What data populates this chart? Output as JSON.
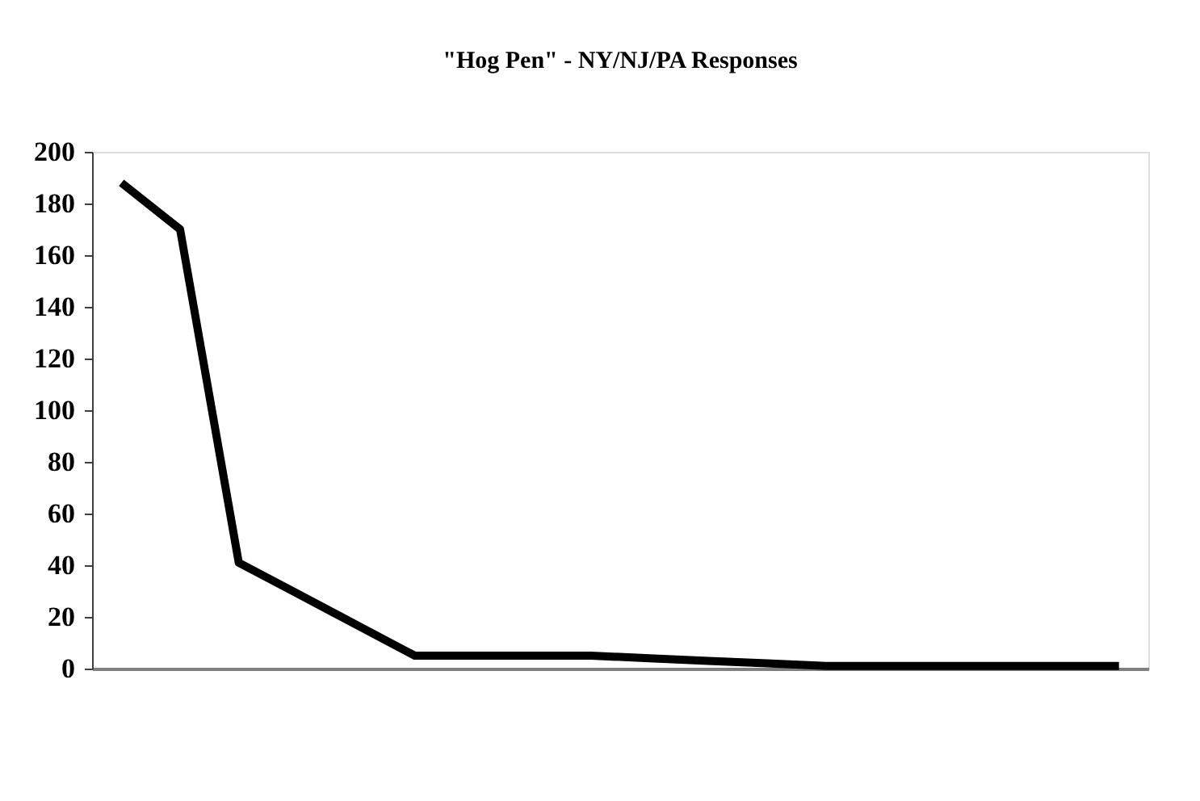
{
  "chart_data": {
    "type": "line",
    "title": "\"Hog Pen\" - NY/NJ/PA Responses",
    "categories": [
      null,
      null,
      null,
      null,
      null,
      null,
      null,
      null,
      null,
      null,
      null,
      null,
      null,
      null,
      null,
      null,
      null,
      null
    ],
    "series": [
      {
        "color": "#000000",
        "values": [
          188,
          170,
          41,
          29,
          17,
          5,
          5,
          5,
          5,
          4,
          3,
          2,
          1,
          1,
          1,
          1,
          1,
          1
        ]
      }
    ],
    "ylim": [
      0,
      200
    ],
    "yticks": [
      0,
      20,
      40,
      60,
      80,
      100,
      120,
      140,
      160,
      180,
      200
    ],
    "grid": false,
    "legend": false,
    "marker": "none",
    "line_style": "solid"
  }
}
